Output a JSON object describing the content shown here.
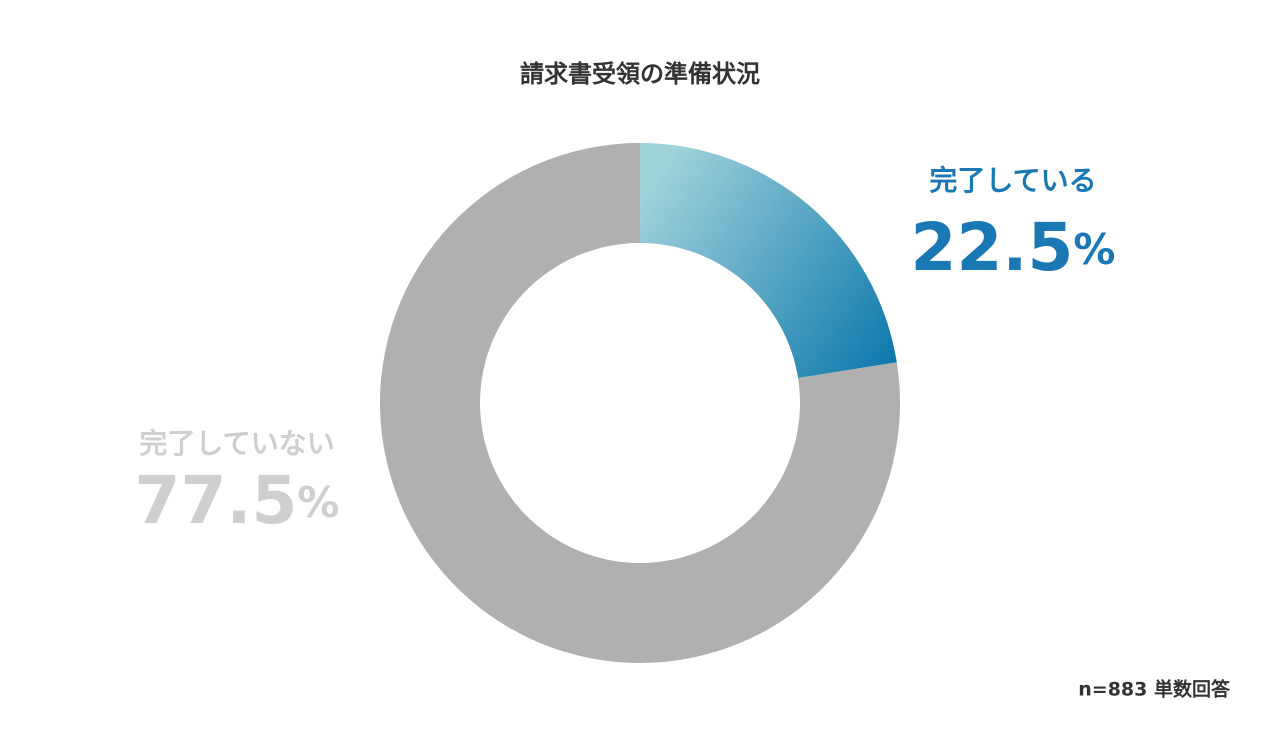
{
  "chart_data": {
    "type": "donut",
    "title": "請求書受領の準備状況",
    "categories": [
      "完了している",
      "完了していない"
    ],
    "values": [
      22.5,
      77.5
    ],
    "value_labels": [
      "22.5%",
      "77.5%"
    ],
    "colors": [
      "#0a76ab",
      "#b0b0b0"
    ],
    "note": "n=883 単数回答"
  }
}
